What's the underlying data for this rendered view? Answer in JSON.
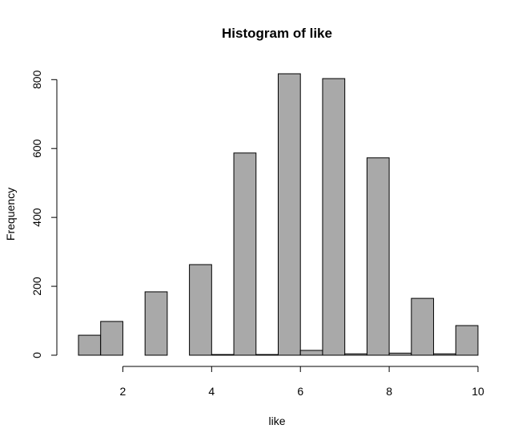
{
  "chart_data": {
    "type": "bar",
    "title": "Histogram of like",
    "xlabel": "like",
    "ylabel": "Frequency",
    "bar_color": "#a9a9a9",
    "bins": [
      {
        "from": 1.0,
        "to": 1.5,
        "count": 58
      },
      {
        "from": 1.5,
        "to": 2.0,
        "count": 98
      },
      {
        "from": 2.0,
        "to": 2.5,
        "count": 0
      },
      {
        "from": 2.5,
        "to": 3.0,
        "count": 184
      },
      {
        "from": 3.0,
        "to": 3.5,
        "count": 0
      },
      {
        "from": 3.5,
        "to": 4.0,
        "count": 263
      },
      {
        "from": 4.0,
        "to": 4.5,
        "count": 2
      },
      {
        "from": 4.5,
        "to": 5.0,
        "count": 587
      },
      {
        "from": 5.0,
        "to": 5.5,
        "count": 2
      },
      {
        "from": 5.5,
        "to": 6.0,
        "count": 817
      },
      {
        "from": 6.0,
        "to": 6.5,
        "count": 14
      },
      {
        "from": 6.5,
        "to": 7.0,
        "count": 803
      },
      {
        "from": 7.0,
        "to": 7.5,
        "count": 4
      },
      {
        "from": 7.5,
        "to": 8.0,
        "count": 573
      },
      {
        "from": 8.0,
        "to": 8.5,
        "count": 6
      },
      {
        "from": 8.5,
        "to": 9.0,
        "count": 165
      },
      {
        "from": 9.0,
        "to": 9.5,
        "count": 4
      },
      {
        "from": 9.5,
        "to": 10.0,
        "count": 86
      }
    ],
    "xticks": [
      2,
      4,
      6,
      8,
      10
    ],
    "yticks": [
      0,
      200,
      400,
      600,
      800
    ],
    "xlim": [
      1,
      10
    ],
    "ylim": [
      0,
      817
    ],
    "grid": false
  }
}
